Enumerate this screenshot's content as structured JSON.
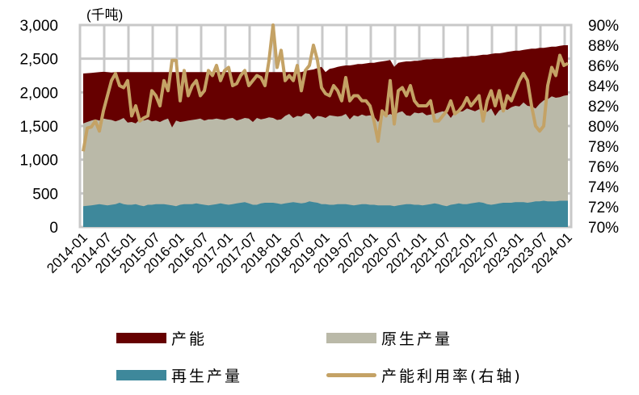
{
  "chart_data": {
    "type": "area+line",
    "title": "",
    "unit_label": "(千吨)",
    "left_axis": {
      "ticks": [
        "0",
        "500",
        "1,000",
        "1,500",
        "2,000",
        "2,500",
        "3,000"
      ],
      "range": [
        0,
        3000
      ]
    },
    "right_axis": {
      "ticks": [
        "70%",
        "72%",
        "74%",
        "76%",
        "78%",
        "80%",
        "82%",
        "84%",
        "86%",
        "88%",
        "90%"
      ],
      "range": [
        70,
        90
      ]
    },
    "x_tick_labels": [
      "2014-01",
      "2014-07",
      "2015-01",
      "2015-07",
      "2016-01",
      "2016-07",
      "2017-01",
      "2017-07",
      "2018-01",
      "2018-07",
      "2019-01",
      "2019-07",
      "2020-01",
      "2020-07",
      "2021-01",
      "2021-07",
      "2022-01",
      "2022-07",
      "2023-01",
      "2023-07",
      "2024-01"
    ],
    "x_start": "2014-01",
    "x_end": "2024-01",
    "grid": true,
    "legend_position": "bottom",
    "colors": {
      "capacity": "#660000",
      "primary": "#BAB9A8",
      "recycled": "#3E889B",
      "utilization": "#C4A265",
      "grid": "#C8C8C8"
    },
    "series": [
      {
        "name": "产能",
        "key": "capacity",
        "type": "area",
        "values": [
          2280,
          2285,
          2290,
          2295,
          2300,
          2305,
          2300,
          2295,
          2300,
          2300,
          2300,
          2300,
          2300,
          2300,
          2300,
          2300,
          2300,
          2300,
          2300,
          2300,
          2300,
          2300,
          2300,
          2300,
          2300,
          2300,
          2300,
          2300,
          2300,
          2300,
          2300,
          2300,
          2300,
          2300,
          2300,
          2300,
          2300,
          2300,
          2300,
          2300,
          2300,
          2300,
          2300,
          2300,
          2300,
          2300,
          2300,
          2300,
          2300,
          2300,
          2300,
          2300,
          2300,
          2300,
          2300,
          2320,
          2330,
          2340,
          2360,
          2380,
          2300,
          2350,
          2360,
          2380,
          2390,
          2400,
          2400,
          2410,
          2420,
          2420,
          2430,
          2440,
          2440,
          2450,
          2460,
          2470,
          2480,
          2380,
          2440,
          2450,
          2460,
          2460,
          2470,
          2470,
          2480,
          2490,
          2490,
          2500,
          2500,
          2500,
          2510,
          2510,
          2520,
          2520,
          2530,
          2530,
          2540,
          2540,
          2550,
          2560,
          2560,
          2570,
          2580,
          2580,
          2590,
          2600,
          2610,
          2620,
          2620,
          2630,
          2640,
          2650,
          2650,
          2660,
          2660,
          2670,
          2680,
          2680,
          2690,
          2700,
          2700
        ]
      },
      {
        "name": "原生产量",
        "key": "primary",
        "type": "area",
        "values": [
          1540,
          1560,
          1580,
          1600,
          1580,
          1610,
          1600,
          1590,
          1570,
          1590,
          1620,
          1550,
          1560,
          1540,
          1600,
          1580,
          1600,
          1570,
          1580,
          1560,
          1590,
          1610,
          1480,
          1580,
          1560,
          1570,
          1580,
          1590,
          1600,
          1610,
          1580,
          1600,
          1600,
          1610,
          1600,
          1590,
          1610,
          1620,
          1580,
          1600,
          1620,
          1610,
          1560,
          1620,
          1600,
          1610,
          1630,
          1620,
          1590,
          1600,
          1650,
          1680,
          1620,
          1650,
          1640,
          1690,
          1680,
          1600,
          1650,
          1640,
          1620,
          1660,
          1650,
          1640,
          1650,
          1680,
          1600,
          1660,
          1640,
          1670,
          1650,
          1660,
          1640,
          1560,
          1670,
          1650,
          1680,
          1650,
          1700,
          1720,
          1660,
          1650,
          1700,
          1690,
          1700,
          1660,
          1670,
          1680,
          1700,
          1720,
          1700,
          1620,
          1700,
          1710,
          1720,
          1760,
          1740,
          1720,
          1750,
          1730,
          1710,
          1760,
          1650,
          1730,
          1760,
          1740,
          1780,
          1800,
          1790,
          1850,
          1800,
          1790,
          1760,
          1830,
          1880,
          1900,
          1940,
          1920,
          1930,
          1950,
          1960
        ]
      },
      {
        "name": "再生产量",
        "key": "recycled",
        "type": "area",
        "values": [
          310,
          315,
          320,
          330,
          340,
          330,
          320,
          330,
          340,
          360,
          340,
          330,
          330,
          340,
          320,
          310,
          330,
          330,
          340,
          340,
          340,
          330,
          320,
          310,
          330,
          340,
          340,
          340,
          350,
          340,
          330,
          320,
          330,
          340,
          350,
          340,
          330,
          340,
          350,
          360,
          370,
          350,
          330,
          330,
          350,
          360,
          360,
          360,
          350,
          340,
          350,
          360,
          370,
          360,
          350,
          360,
          380,
          370,
          360,
          340,
          340,
          330,
          330,
          340,
          340,
          340,
          330,
          320,
          330,
          340,
          340,
          330,
          330,
          320,
          320,
          320,
          320,
          310,
          320,
          330,
          340,
          340,
          330,
          330,
          320,
          330,
          340,
          350,
          340,
          320,
          310,
          330,
          340,
          350,
          340,
          340,
          350,
          360,
          370,
          360,
          340,
          330,
          340,
          350,
          360,
          360,
          360,
          370,
          370,
          370,
          360,
          370,
          380,
          380,
          390,
          380,
          380,
          380,
          390,
          390,
          390
        ]
      },
      {
        "name": "产能利用率(右轴)",
        "key": "utilization",
        "type": "line",
        "axis": "right",
        "values": [
          77.5,
          79.8,
          79.9,
          80.5,
          79.5,
          81.5,
          83.0,
          84.5,
          85.2,
          84.0,
          83.8,
          84.5,
          81.0,
          82.0,
          80.5,
          80.8,
          81.0,
          83.5,
          83.0,
          82.0,
          84.5,
          83.5,
          86.5,
          86.5,
          82.5,
          85.5,
          83.0,
          84.0,
          84.5,
          83.0,
          83.5,
          85.5,
          85.0,
          86.0,
          84.5,
          85.5,
          85.8,
          84.0,
          84.2,
          85.0,
          85.5,
          84.0,
          84.5,
          85.0,
          84.8,
          84.0,
          86.5,
          90.0,
          85.8,
          87.5,
          84.5,
          85.0,
          84.5,
          86.0,
          83.5,
          85.5,
          86.0,
          88.0,
          86.5,
          83.8,
          83.2,
          83.0,
          84.0,
          83.5,
          82.5,
          84.8,
          82.5,
          83.0,
          83.0,
          82.5,
          82.5,
          82.0,
          80.5,
          78.5,
          81.5,
          81.0,
          84.5,
          80.2,
          83.5,
          83.8,
          83.0,
          84.0,
          82.5,
          82.0,
          82.0,
          82.0,
          82.5,
          80.5,
          80.5,
          81.0,
          81.5,
          82.5,
          81.2,
          81.5,
          82.0,
          82.8,
          82.0,
          82.5,
          83.0,
          80.5,
          82.5,
          83.5,
          82.0,
          83.5,
          81.5,
          83.0,
          82.5,
          83.5,
          84.5,
          85.2,
          84.5,
          82.0,
          80.0,
          79.5,
          80.0,
          84.0,
          85.8,
          85.0,
          87.0,
          86.0,
          86.2
        ]
      }
    ]
  },
  "legend": {
    "capacity_label": "产能",
    "primary_label": "原生产量",
    "recycled_label": "再生产量",
    "utilization_label": "产能利用率(右轴)"
  }
}
